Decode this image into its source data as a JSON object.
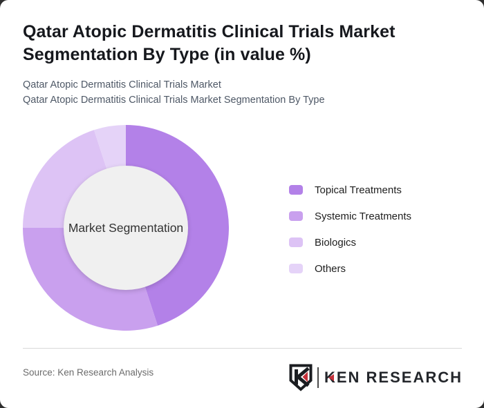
{
  "page": {
    "title": "Qatar Atopic Dermatitis Clinical Trials Market Segmentation By Type (in value %)",
    "subtitle_line1": "Qatar Atopic Dermatitis Clinical Trials Market",
    "subtitle_line2": "Qatar Atopic Dermatitis Clinical Trials Market Segmentation By Type",
    "source": "Source: Ken Research Analysis",
    "brand_name": "KEN RESEARCH"
  },
  "colors": {
    "card_background": "#ffffff",
    "outer_background": "#2e2e2e",
    "title_text": "#16181d",
    "subtitle_text": "#4e5866",
    "center_circle": "#f0f0f0",
    "divider": "#d9d9d9",
    "brand_red": "#c5303a",
    "brand_dark": "#23262b"
  },
  "chart_data": {
    "type": "pie",
    "style": "donut",
    "title": "Qatar Atopic Dermatitis Clinical Trials Market Segmentation By Type (in value %)",
    "center_label": "Market Segmentation",
    "unit": "%",
    "categories": [
      "Topical Treatments",
      "Systemic Treatments",
      "Biologics",
      "Others"
    ],
    "values": [
      45,
      30,
      20,
      5
    ],
    "colors": [
      "#b381e8",
      "#c9a0ee",
      "#ddc3f5",
      "#e5d3f8"
    ],
    "start_angle_deg": 0,
    "direction": "clockwise",
    "outer_radius_px": 149,
    "inner_radius_px": 90,
    "legend_position": "right",
    "data_labels": "none"
  }
}
